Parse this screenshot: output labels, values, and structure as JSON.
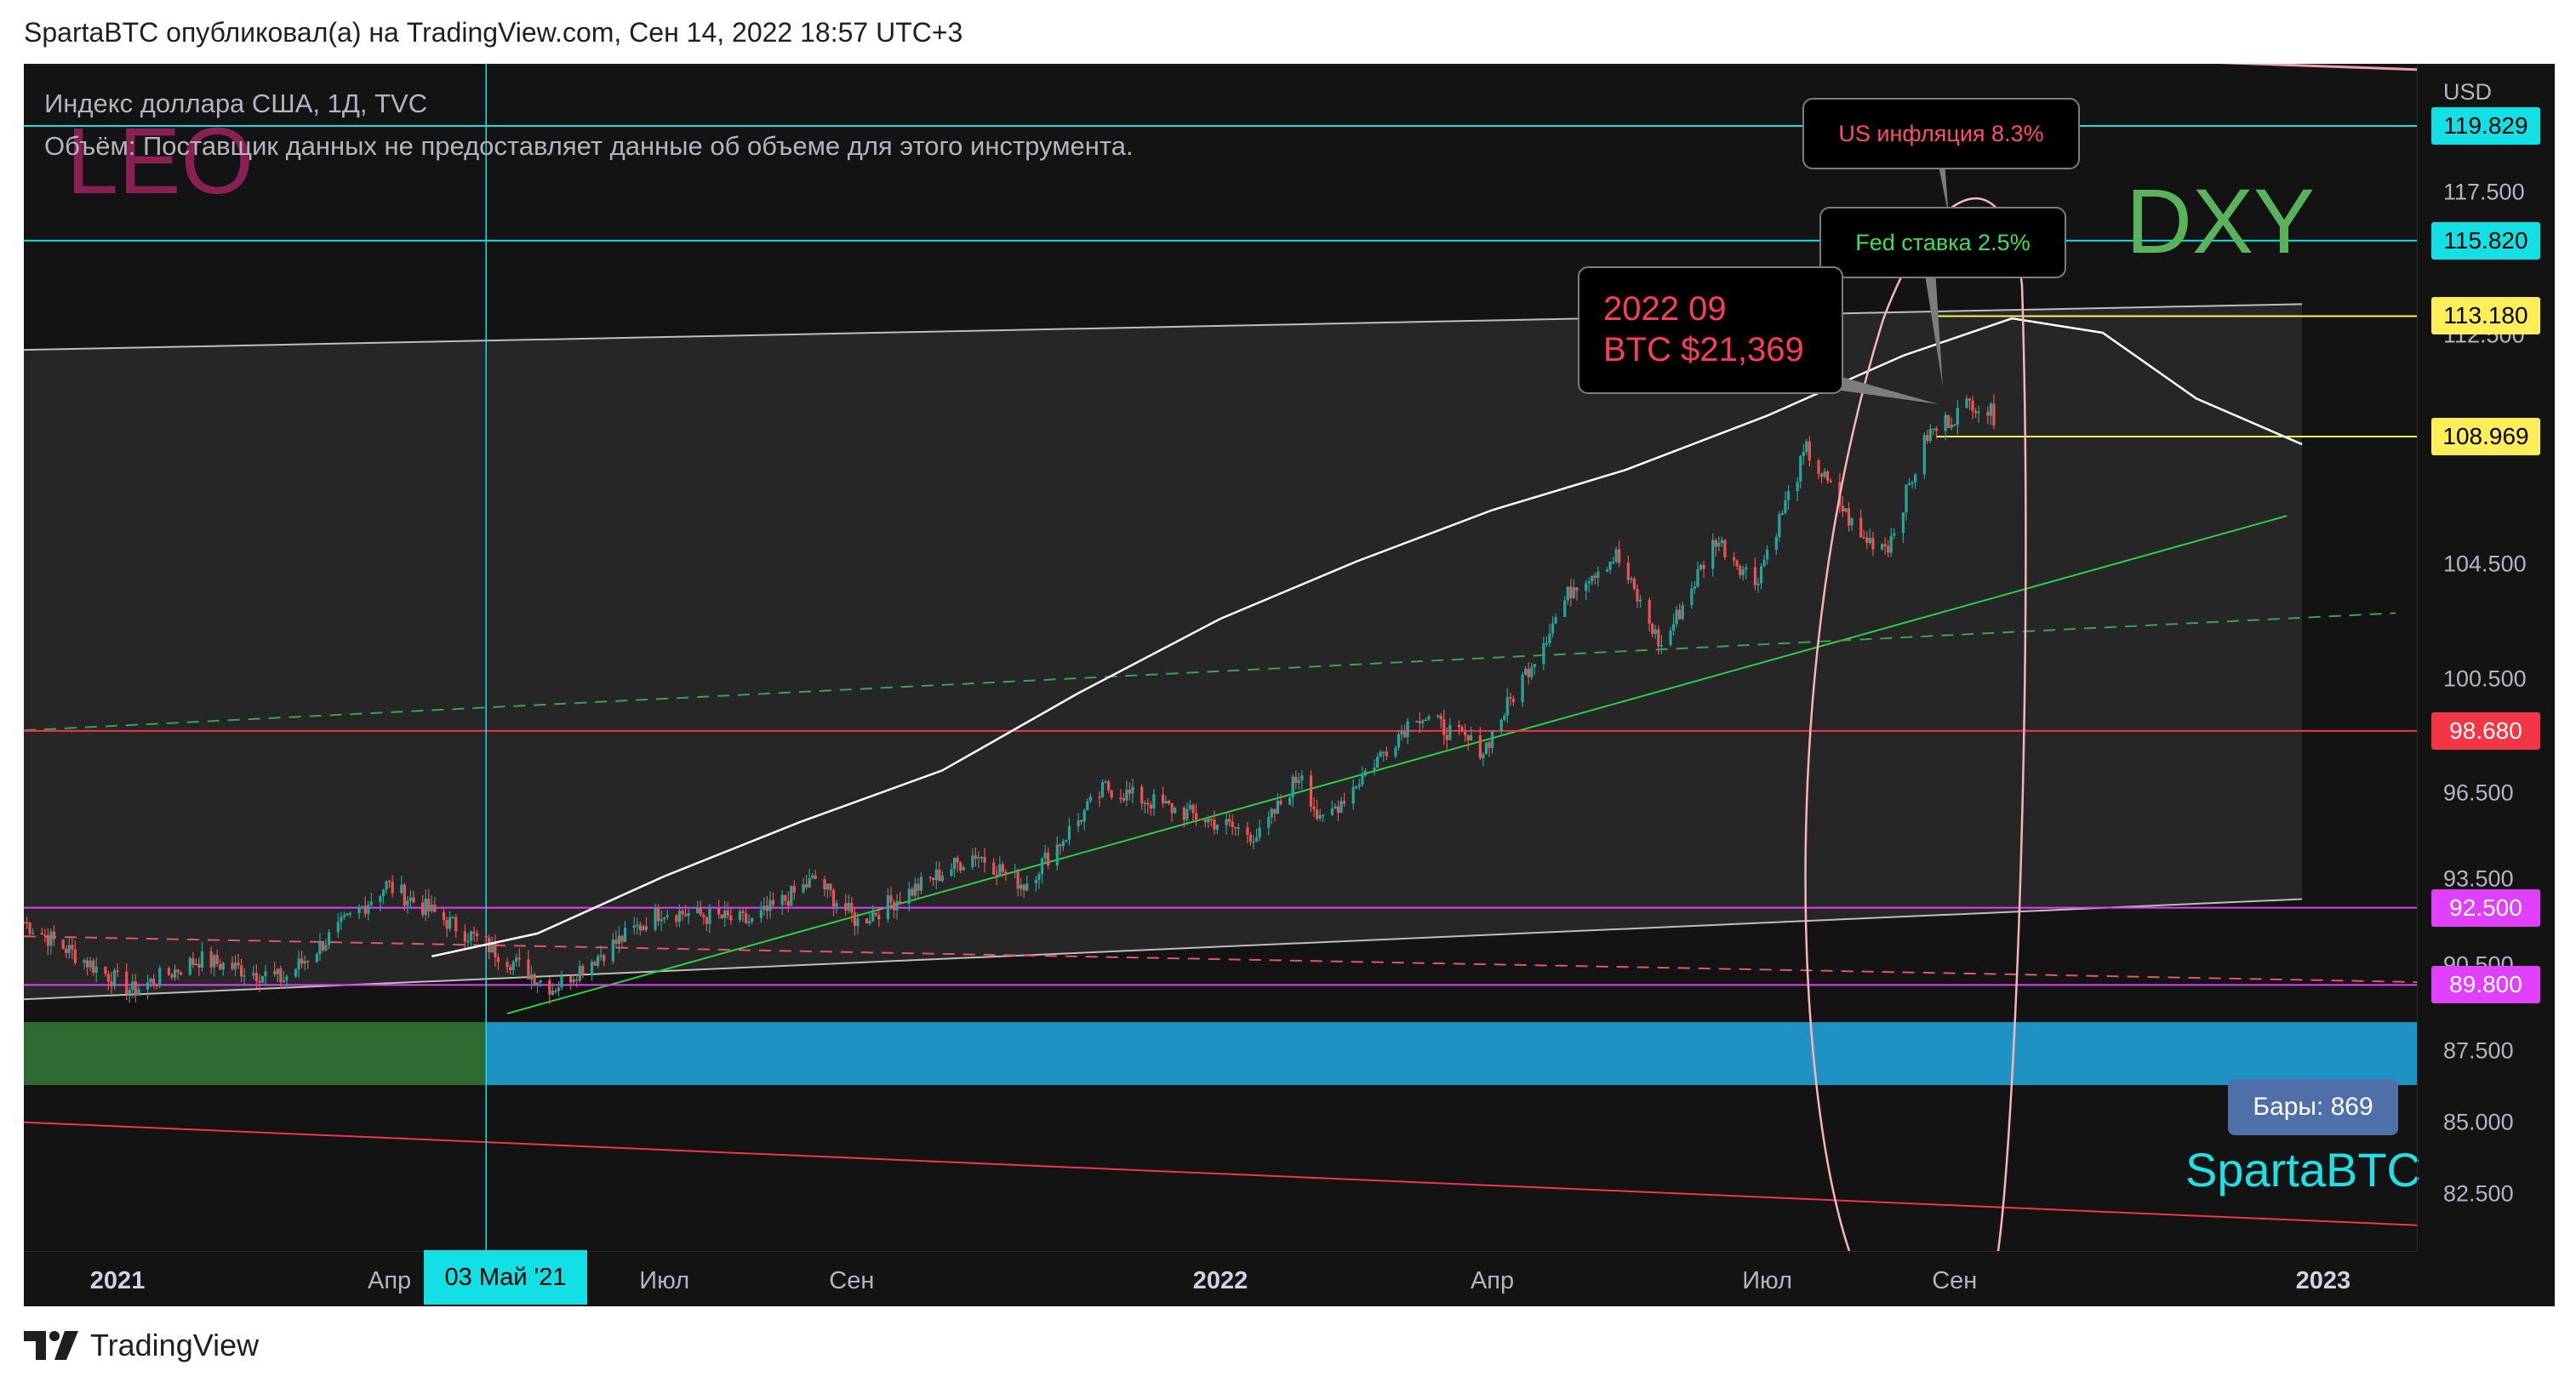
{
  "header": {
    "publisher": "SpartaBTC опубликовал(а) на TradingView.com, Сен 14, 2022 18:57 UTC+3"
  },
  "legend": {
    "symbol_line": "Индекс доллара США, 1Д, TVC",
    "volume_line": "Объём: Поставщик данных не предоставляет данные об объеме для этого инструмента."
  },
  "watermarks": {
    "author": "LEO",
    "ticker": "DXY",
    "brand": "SpartaBTC"
  },
  "callouts": {
    "inflation": "US инфляция 8.3%",
    "fed_rate": "Fed ставка 2.5%",
    "btc_line1": "2022 09",
    "btc_line2": "BTC $21,369"
  },
  "bars_badge": "Бары: 869",
  "crosshair_date": "03 Май '21",
  "footer_brand": "TradingView",
  "colors": {
    "background": "#131313",
    "candle_up": "#26a69a",
    "candle_down": "#ef5350",
    "cyan": "#13e0e4",
    "yellow": "#ffee58",
    "red": "#f23645",
    "magenta": "#e040fb",
    "green_line": "#2ecc40"
  },
  "chart_data": {
    "type": "candlestick",
    "title": "Индекс доллара США, 1Д, TVC",
    "price_unit": "USD",
    "x_range": [
      "2020-12-01",
      "2023-02-01"
    ],
    "y_range": [
      80.5,
      122.0
    ],
    "y_ticks": [
      82.5,
      85.0,
      87.5,
      90.5,
      93.5,
      96.5,
      100.5,
      104.5,
      112.5,
      117.5
    ],
    "y_tick_labels": [
      "82.500",
      "85.000",
      "87.500",
      "90.500",
      "93.500",
      "96.500",
      "100.500",
      "104.500",
      "112.500",
      "117.500"
    ],
    "x_tick_labels": [
      {
        "date": "2021-01-01",
        "label": "2021",
        "major": true
      },
      {
        "date": "2021-04-01",
        "label": "Апр",
        "major": false
      },
      {
        "date": "2021-07-01",
        "label": "Июл",
        "major": false
      },
      {
        "date": "2021-09-01",
        "label": "Сен",
        "major": false
      },
      {
        "date": "2022-01-01",
        "label": "2022",
        "major": true
      },
      {
        "date": "2022-04-01",
        "label": "Апр",
        "major": false
      },
      {
        "date": "2022-07-01",
        "label": "Июл",
        "major": false
      },
      {
        "date": "2022-09-01",
        "label": "Сен",
        "major": false
      },
      {
        "date": "2023-01-01",
        "label": "2023",
        "major": true
      }
    ],
    "price_levels": [
      {
        "value": 119.829,
        "label": "119.829",
        "color": "#13e0e4"
      },
      {
        "value": 115.82,
        "label": "115.820",
        "color": "#13e0e4"
      },
      {
        "value": 113.18,
        "label": "113.180",
        "color": "#ffee58"
      },
      {
        "value": 108.969,
        "label": "108.969",
        "color": "#ffee58"
      },
      {
        "value": 98.68,
        "label": "98.680",
        "color": "#f23645"
      },
      {
        "value": 92.5,
        "label": "92.500",
        "color": "#e040fb"
      },
      {
        "value": 89.8,
        "label": "89.800",
        "color": "#e040fb"
      }
    ],
    "close_anchors": [
      {
        "date": "2020-12-01",
        "value": 92.0
      },
      {
        "date": "2021-01-06",
        "value": 89.6
      },
      {
        "date": "2021-01-28",
        "value": 90.7
      },
      {
        "date": "2021-02-25",
        "value": 90.0
      },
      {
        "date": "2021-03-31",
        "value": 93.3
      },
      {
        "date": "2021-05-03",
        "value": 91.2
      },
      {
        "date": "2021-05-25",
        "value": 89.7
      },
      {
        "date": "2021-06-30",
        "value": 92.4
      },
      {
        "date": "2021-07-30",
        "value": 92.0
      },
      {
        "date": "2021-08-20",
        "value": 93.5
      },
      {
        "date": "2021-09-03",
        "value": 92.0
      },
      {
        "date": "2021-10-12",
        "value": 94.4
      },
      {
        "date": "2021-10-28",
        "value": 93.3
      },
      {
        "date": "2021-11-24",
        "value": 96.7
      },
      {
        "date": "2022-01-14",
        "value": 95.0
      },
      {
        "date": "2022-01-28",
        "value": 97.3
      },
      {
        "date": "2022-02-03",
        "value": 95.4
      },
      {
        "date": "2022-03-07",
        "value": 99.3
      },
      {
        "date": "2022-03-29",
        "value": 98.0
      },
      {
        "date": "2022-04-28",
        "value": 103.8
      },
      {
        "date": "2022-05-12",
        "value": 104.8
      },
      {
        "date": "2022-05-27",
        "value": 101.6
      },
      {
        "date": "2022-06-14",
        "value": 105.4
      },
      {
        "date": "2022-06-27",
        "value": 103.9
      },
      {
        "date": "2022-07-14",
        "value": 108.5
      },
      {
        "date": "2022-08-01",
        "value": 105.4
      },
      {
        "date": "2022-08-10",
        "value": 105.2
      },
      {
        "date": "2022-08-23",
        "value": 109.0
      },
      {
        "date": "2022-09-07",
        "value": 110.2
      },
      {
        "date": "2022-09-14",
        "value": 109.7
      }
    ]
  }
}
